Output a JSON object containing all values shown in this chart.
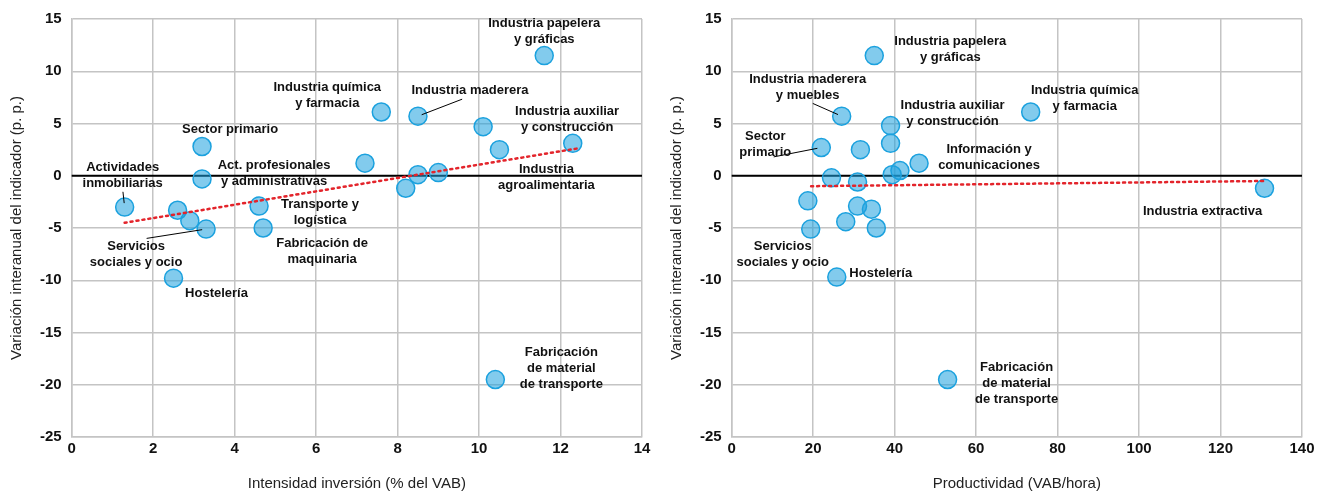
{
  "chart_data": [
    {
      "type": "scatter",
      "xlabel": "Intensidad inversión (% del VAB)",
      "ylabel": "Variación interanual del indicador (p. p.)",
      "xlim": [
        0,
        14
      ],
      "xticks": [
        0,
        2,
        4,
        6,
        8,
        10,
        12,
        14
      ],
      "ylim": [
        -25,
        15
      ],
      "yticks": [
        -25,
        -20,
        -15,
        -10,
        -5,
        0,
        5,
        10,
        15
      ],
      "grid": true,
      "marker": "circle",
      "legend": false,
      "ref_lines": [
        {
          "axis": "y",
          "value": 0,
          "color": "#000000"
        }
      ],
      "series": [
        {
          "color": "#1ba1de",
          "x": [
            1.3,
            2.6,
            2.9,
            3.3,
            3.2,
            3.2,
            2.5,
            4.6,
            4.7,
            7.2,
            7.6,
            8.5,
            8.2,
            8.5,
            9.0,
            10.1,
            10.5,
            11.6,
            12.3,
            10.4
          ],
          "values": [
            -3.0,
            -3.3,
            -4.3,
            -5.1,
            2.8,
            -0.3,
            -9.8,
            -2.9,
            -5.0,
            1.2,
            6.1,
            5.7,
            -1.2,
            0.1,
            0.3,
            4.7,
            2.5,
            11.5,
            3.1,
            -19.5
          ]
        },
        {
          "type": "line",
          "color": "#e3242b",
          "line_style": "dotted",
          "marker": "none",
          "x": [
            1.3,
            12.4
          ],
          "values": [
            -4.5,
            2.6
          ]
        }
      ],
      "annotations": [
        {
          "text": "Industria papelera\ny gráficas",
          "x": 11.6,
          "y": 11.5
        },
        {
          "text": "Industria química\ny farmacia",
          "x": 7.6,
          "y": 6.1
        },
        {
          "text": "Industria maderera",
          "x": 8.5,
          "y": 5.7
        },
        {
          "text": "Industria auxiliar\ny construcción",
          "x": 10.1,
          "y": 4.7
        },
        {
          "text": "Sector primario",
          "x": 3.2,
          "y": 2.8
        },
        {
          "text": "Act. profesionales\ny administrativas",
          "x": 3.2,
          "y": -0.3
        },
        {
          "text": "Actividades\ninmobiliarias",
          "x": 1.3,
          "y": -3.0
        },
        {
          "text": "Transporte y\nlogística",
          "x": 4.6,
          "y": -2.9
        },
        {
          "text": "Fabricación de\nmaquinaria",
          "x": 4.7,
          "y": -5.0
        },
        {
          "text": "Servicios\nsociales y ocio",
          "x": 3.3,
          "y": -5.1
        },
        {
          "text": "Hostelería",
          "x": 2.5,
          "y": -9.8
        },
        {
          "text": "Industria\nagroalimentaria",
          "x": 10.5,
          "y": 2.5
        },
        {
          "text": "Fabricación\nde material\nde transporte",
          "x": 10.4,
          "y": -19.5
        }
      ]
    },
    {
      "type": "scatter",
      "xlabel": "Productividad (VAB/hora)",
      "ylabel": "Variación interanual del indicador (p. p.)",
      "xlim": [
        0,
        140
      ],
      "xticks": [
        0,
        20,
        40,
        60,
        80,
        100,
        120,
        140
      ],
      "ylim": [
        -25,
        15
      ],
      "yticks": [
        -25,
        -20,
        -15,
        -10,
        -5,
        0,
        5,
        10,
        15
      ],
      "grid": true,
      "marker": "circle",
      "legend": false,
      "ref_lines": [
        {
          "axis": "y",
          "value": 0,
          "color": "#000000"
        }
      ],
      "series": [
        {
          "color": "#1ba1de",
          "x": [
            35,
            27,
            22,
            39,
            39,
            31.6,
            73.4,
            46,
            41.3,
            39.4,
            24.5,
            30.9,
            18.7,
            30.9,
            34.3,
            28,
            35.5,
            19.4,
            25.8,
            53,
            130.8
          ],
          "values": [
            11.5,
            5.7,
            2.7,
            4.8,
            3.1,
            2.5,
            6.1,
            1.2,
            0.5,
            0.1,
            -0.2,
            -0.6,
            -2.4,
            -2.9,
            -3.2,
            -4.4,
            -5.0,
            -5.1,
            -9.7,
            -19.5,
            -1.2
          ]
        },
        {
          "type": "line",
          "color": "#e3242b",
          "line_style": "dotted",
          "marker": "none",
          "x": [
            19.5,
            131
          ],
          "values": [
            -1.0,
            -0.5
          ]
        }
      ],
      "annotations": [
        {
          "text": "Industria papelera\ny gráficas",
          "x": 35,
          "y": 11.5
        },
        {
          "text": "Industria maderera\ny muebles",
          "x": 27,
          "y": 5.7
        },
        {
          "text": "Sector\nprimario",
          "x": 22,
          "y": 2.7
        },
        {
          "text": "Industria auxiliar\ny construcción",
          "x": 39,
          "y": 4.8
        },
        {
          "text": "Industria química\ny farmacia",
          "x": 73.4,
          "y": 6.1
        },
        {
          "text": "Información y\ncomunicaciones",
          "x": 46,
          "y": 1.2
        },
        {
          "text": "Industria extractiva",
          "x": 130.8,
          "y": -1.2
        },
        {
          "text": "Servicios\nsociales y ocio",
          "x": 19.4,
          "y": -5.1
        },
        {
          "text": "Hostelería",
          "x": 25.8,
          "y": -9.7
        },
        {
          "text": "Fabricación\nde material\nde transporte",
          "x": 53,
          "y": -19.5
        }
      ]
    }
  ]
}
